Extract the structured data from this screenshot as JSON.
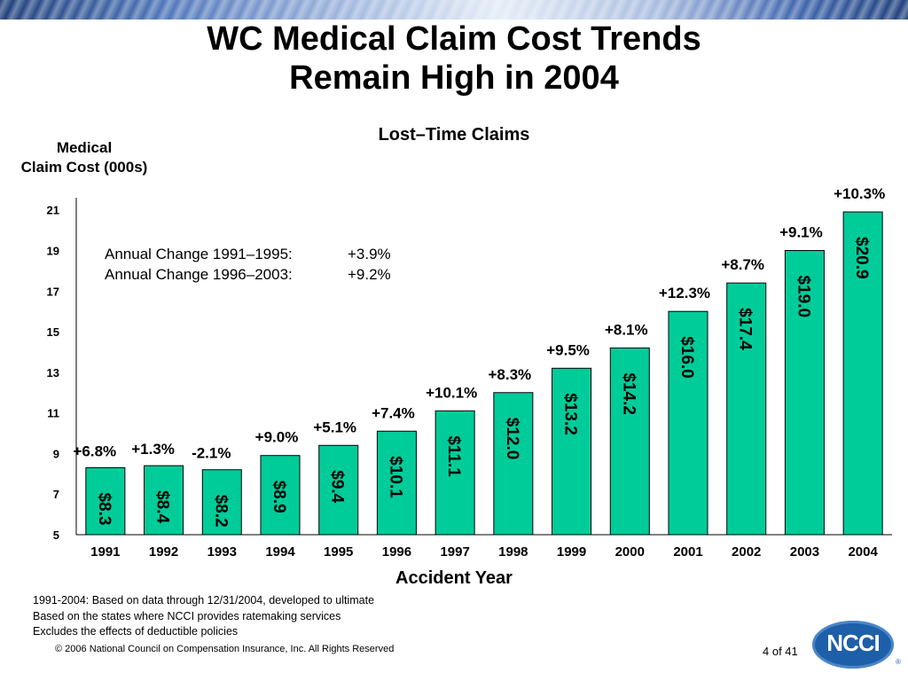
{
  "slide": {
    "title_line1": "WC Medical Claim Cost Trends",
    "title_line2": "Remain High in 2004",
    "annual_change": [
      {
        "label": "Annual Change 1991–1995:",
        "value": "+3.9%"
      },
      {
        "label": "Annual Change 1996–2003:",
        "value": "+9.2%"
      }
    ],
    "footnotes": [
      "1991-2004: Based on data through 12/31/2004, developed to ultimate",
      "Based on the states where NCCI provides ratemaking services",
      "Excludes the effects of deductible policies"
    ],
    "copyright": "© 2006 National Council on Compensation Insurance, Inc. All Rights Reserved",
    "page": "4 of 41",
    "logo_text": "NCCI",
    "logo_reg": "®"
  },
  "colors": {
    "bar_fill": "#00cc99",
    "bar_stroke": "#000000",
    "banner": "#3e65ad",
    "logo": "#1d5fa8"
  },
  "chart_data": {
    "type": "bar",
    "title": "Lost–Time Claims",
    "xlabel": "Accident Year",
    "ylabel_lines": [
      "Medical",
      "Claim Cost (000s)"
    ],
    "categories": [
      "1991",
      "1992",
      "1993",
      "1994",
      "1995",
      "1996",
      "1997",
      "1998",
      "1999",
      "2000",
      "2001",
      "2002",
      "2003",
      "2004"
    ],
    "values": [
      8.3,
      8.4,
      8.2,
      8.9,
      9.4,
      10.1,
      11.1,
      12.0,
      13.2,
      14.2,
      16.0,
      17.4,
      19.0,
      20.9
    ],
    "value_labels": [
      "$8.3",
      "$8.4",
      "$8.2",
      "$8.9",
      "$9.4",
      "$10.1",
      "$11.1",
      "$12.0",
      "$13.2",
      "$14.2",
      "$16.0",
      "$17.4",
      "$19.0",
      "$20.9"
    ],
    "change_labels": [
      "+6.8%",
      "+1.3%",
      "-2.1%",
      "+9.0%",
      "+5.1%",
      "+7.4%",
      "+10.1%",
      "+8.3%",
      "+9.5%",
      "+8.1%",
      "+12.3%",
      "+8.7%",
      "+9.1%",
      "+10.3%"
    ],
    "y_ticks": [
      5,
      7,
      9,
      11,
      13,
      15,
      17,
      19,
      21
    ],
    "ylim": [
      5,
      21.6
    ],
    "grid": false,
    "legend": "none"
  }
}
